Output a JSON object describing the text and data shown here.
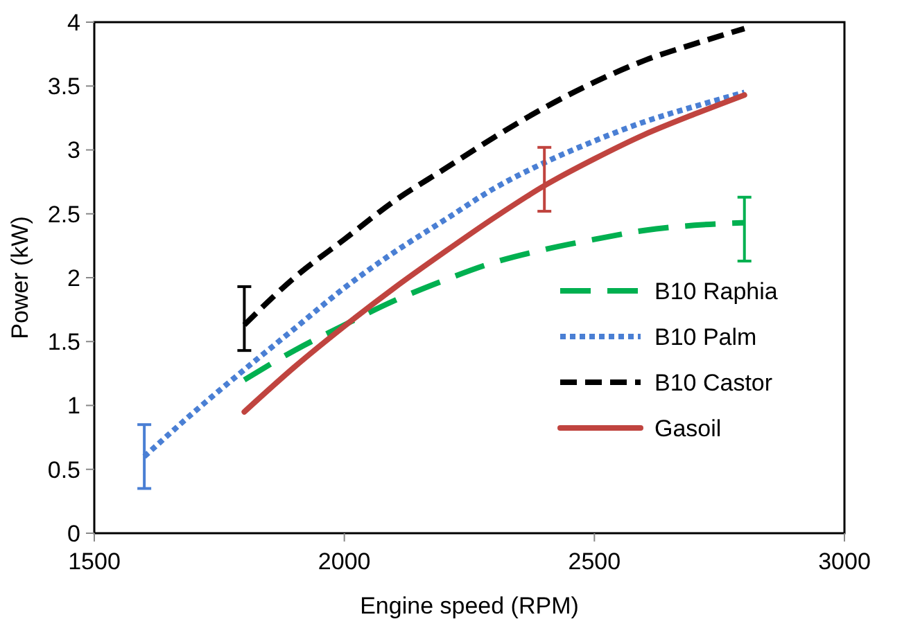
{
  "chart_data": {
    "type": "line",
    "xlabel": "Engine speed (RPM)",
    "ylabel": "Power (kW)",
    "xlim": [
      1500,
      3000
    ],
    "xticks": [
      1500,
      2000,
      2500,
      3000
    ],
    "ylim": [
      0,
      4
    ],
    "yticks": [
      0,
      0.5,
      1,
      1.5,
      2,
      2.5,
      3,
      3.5,
      4
    ],
    "grid": false,
    "legend": "bottom right",
    "marker": "none",
    "series": [
      {
        "name": "B10 Raphia",
        "color": "#00b050",
        "line_style": "dashed",
        "x": [
          1800,
          1900,
          2000,
          2100,
          2200,
          2300,
          2400,
          2500,
          2600,
          2700,
          2800
        ],
        "values": [
          1.2,
          1.43,
          1.63,
          1.82,
          1.98,
          2.12,
          2.22,
          2.3,
          2.37,
          2.41,
          2.43
        ],
        "errors": [
          null,
          null,
          null,
          null,
          null,
          null,
          null,
          null,
          null,
          null,
          [
            2.13,
            2.63
          ]
        ]
      },
      {
        "name": "B10 Palm",
        "color": "#4a7fd4",
        "line_style": "dotted",
        "x": [
          1600,
          1700,
          1800,
          1900,
          2000,
          2100,
          2200,
          2300,
          2400,
          2500,
          2600,
          2700,
          2800
        ],
        "values": [
          0.6,
          0.95,
          1.28,
          1.6,
          1.92,
          2.2,
          2.45,
          2.7,
          2.9,
          3.07,
          3.22,
          3.34,
          3.45
        ],
        "errors": [
          [
            0.35,
            0.85
          ],
          null,
          null,
          null,
          null,
          null,
          null,
          null,
          null,
          null,
          null,
          null,
          null
        ]
      },
      {
        "name": "B10 Castor",
        "color": "#000000",
        "line_style": "dashed",
        "x": [
          1800,
          1900,
          2000,
          2100,
          2200,
          2300,
          2400,
          2500,
          2600,
          2700,
          2800
        ],
        "values": [
          1.63,
          2.0,
          2.3,
          2.6,
          2.85,
          3.1,
          3.33,
          3.53,
          3.7,
          3.83,
          3.95
        ],
        "errors": [
          [
            1.43,
            1.93
          ],
          null,
          null,
          null,
          null,
          null,
          null,
          null,
          null,
          null,
          null
        ]
      },
      {
        "name": "Gasoil",
        "color": "#c0443f",
        "line_style": "solid",
        "x": [
          1800,
          1900,
          2000,
          2100,
          2200,
          2300,
          2400,
          2500,
          2600,
          2700,
          2800
        ],
        "values": [
          0.95,
          1.3,
          1.62,
          1.92,
          2.2,
          2.47,
          2.72,
          2.93,
          3.12,
          3.28,
          3.43
        ],
        "errors": [
          null,
          null,
          null,
          null,
          null,
          null,
          [
            2.52,
            3.02
          ],
          null,
          null,
          null,
          null
        ]
      }
    ]
  }
}
